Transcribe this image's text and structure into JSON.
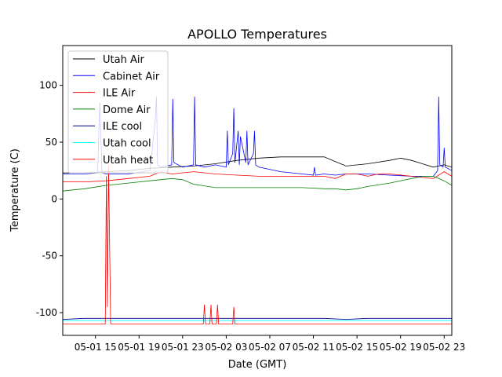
{
  "chart_data": {
    "type": "line",
    "title": "APOLLO Temperatures",
    "xlabel": "Date (GMT)",
    "ylabel": "Temperature (C)",
    "x_unit": "hours since 05-01 12:00 GMT",
    "xlim": [
      0,
      35.7
    ],
    "ylim": [
      -120,
      135
    ],
    "x_ticks": [
      {
        "x": 3,
        "label": "05-01 15"
      },
      {
        "x": 7,
        "label": "05-01 19"
      },
      {
        "x": 11,
        "label": "05-01 23"
      },
      {
        "x": 15,
        "label": "05-02 03"
      },
      {
        "x": 19,
        "label": "05-02 07"
      },
      {
        "x": 23,
        "label": "05-02 11"
      },
      {
        "x": 27,
        "label": "05-02 15"
      },
      {
        "x": 31,
        "label": "05-02 19"
      },
      {
        "x": 35,
        "label": "05-02 23"
      }
    ],
    "y_ticks": [
      100,
      50,
      0,
      -50,
      -100
    ],
    "legend_position": "top-left",
    "series": [
      {
        "name": "Utah Air",
        "color": "#000000",
        "x": [
          0,
          2,
          4,
          6,
          8,
          10,
          12,
          14,
          16,
          18,
          20,
          22,
          24,
          25,
          26,
          28,
          30,
          31,
          32,
          33,
          34,
          35,
          35.7
        ],
        "y": [
          23,
          23,
          24,
          25,
          27,
          28,
          29,
          31,
          34,
          36,
          37,
          37,
          37,
          33,
          29,
          31,
          34,
          36,
          34,
          31,
          28,
          30,
          28
        ]
      },
      {
        "name": "Cabinet Air",
        "color": "#0000ff",
        "x": [
          0,
          2,
          3.2,
          3.4,
          3.6,
          4,
          6,
          8,
          8.5,
          8.6,
          8.7,
          9,
          10,
          10.1,
          10.2,
          11,
          12,
          12.1,
          12.2,
          13,
          14,
          15,
          15.1,
          15.2,
          15.6,
          15.7,
          15.8,
          16.1,
          16.2,
          16.3,
          16.8,
          16.9,
          17,
          17.5,
          17.6,
          17.7,
          18,
          20,
          22,
          23,
          23.1,
          23.2,
          24,
          25,
          26,
          28,
          30,
          32,
          34,
          34.4,
          34.5,
          34.6,
          34.9,
          35,
          35.1,
          35.7
        ],
        "y": [
          22,
          22,
          23,
          85,
          23,
          22,
          22,
          25,
          70,
          90,
          30,
          28,
          30,
          88,
          32,
          28,
          30,
          90,
          30,
          28,
          30,
          28,
          60,
          30,
          40,
          80,
          32,
          60,
          30,
          55,
          32,
          60,
          30,
          40,
          60,
          30,
          28,
          24,
          22,
          21,
          28,
          21,
          22,
          21,
          22,
          22,
          21,
          20,
          20,
          25,
          90,
          30,
          28,
          45,
          28,
          25
        ]
      },
      {
        "name": "ILE Air",
        "color": "#ff0000",
        "x": [
          0,
          2,
          4,
          6,
          8,
          9,
          10,
          12,
          14,
          16,
          18,
          20,
          22,
          24,
          25,
          26,
          27,
          28,
          29,
          30,
          32,
          34,
          35,
          35.7
        ],
        "y": [
          15,
          15,
          16,
          18,
          20,
          24,
          22,
          24,
          22,
          21,
          20,
          20,
          20,
          20,
          18,
          22,
          22,
          20,
          22,
          22,
          20,
          18,
          24,
          20
        ]
      },
      {
        "name": "Dome Air",
        "color": "#008000",
        "x": [
          0,
          2,
          4,
          6,
          8,
          10,
          11,
          12,
          14,
          16,
          18,
          20,
          22,
          24,
          25,
          26,
          27,
          28,
          30,
          32,
          33,
          34,
          35,
          35.7
        ],
        "y": [
          7,
          9,
          12,
          14,
          16,
          18,
          17,
          13,
          10,
          10,
          10,
          10,
          10,
          9,
          9,
          8,
          9,
          11,
          14,
          18,
          20,
          20,
          16,
          12
        ]
      },
      {
        "name": "ILE cool",
        "color": "#00008b",
        "x": [
          0,
          2,
          4,
          6,
          8,
          10,
          12,
          14,
          16,
          18,
          20,
          22,
          24,
          26,
          28,
          30,
          32,
          34,
          35.7
        ],
        "y": [
          -106,
          -105,
          -105,
          -105,
          -105,
          -105,
          -105,
          -105,
          -105,
          -105,
          -105,
          -105,
          -105,
          -106,
          -105,
          -105,
          -105,
          -105,
          -105
        ]
      },
      {
        "name": "Utah cool",
        "color": "#00ffff",
        "x": [
          0,
          2,
          4,
          6,
          8,
          10,
          12,
          14,
          16,
          18,
          20,
          22,
          24,
          26,
          28,
          30,
          32,
          34,
          35.7
        ],
        "y": [
          -107,
          -107,
          -107,
          -107,
          -107,
          -107,
          -107,
          -107,
          -107,
          -107,
          -107,
          -107,
          -107,
          -107,
          -107,
          -107,
          -107,
          -107,
          -107
        ]
      },
      {
        "name": "Utah heat",
        "color": "#ff0000",
        "x": [
          0,
          3.9,
          4.0,
          4.1,
          4.2,
          4.3,
          4.4,
          12.9,
          13.0,
          13.1,
          13.5,
          13.6,
          13.7,
          14.1,
          14.2,
          14.3,
          15.6,
          15.7,
          15.8,
          35.7
        ],
        "y": [
          -110,
          -110,
          20,
          -95,
          30,
          -38,
          -110,
          -110,
          -93,
          -110,
          -110,
          -93,
          -110,
          -110,
          -93,
          -110,
          -110,
          -95,
          -110,
          -110
        ]
      }
    ]
  }
}
